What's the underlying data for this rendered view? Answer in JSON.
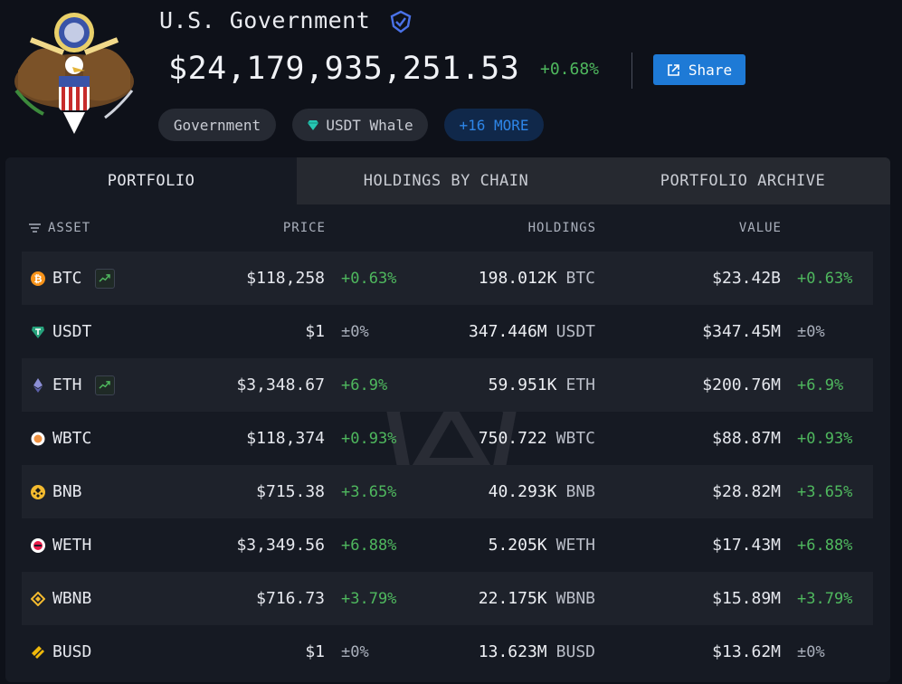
{
  "entity": {
    "name": "U.S. Government",
    "total_value": "$24,179,935,251.53",
    "total_change": "+0.68%",
    "share_label": "Share",
    "tags": [
      {
        "label": "Government"
      },
      {
        "label": "USDT Whale"
      },
      {
        "label": "+16 MORE"
      }
    ]
  },
  "tabs": [
    {
      "label": "PORTFOLIO",
      "active": true
    },
    {
      "label": "HOLDINGS BY CHAIN",
      "active": false
    },
    {
      "label": "PORTFOLIO ARCHIVE",
      "active": false
    }
  ],
  "table": {
    "headers": {
      "asset": "ASSET",
      "price": "PRICE",
      "holdings": "HOLDINGS",
      "value": "VALUE"
    },
    "rows": [
      {
        "asset": "BTC",
        "icon": "bitcoin-icon",
        "icon_color": "#f7931a",
        "trend": true,
        "price": "$118,258",
        "price_change": "+0.63%",
        "holdings": "198.012K",
        "symbol": "BTC",
        "value": "$23.42B",
        "value_change": "+0.63%"
      },
      {
        "asset": "USDT",
        "icon": "tether-icon",
        "icon_color": "#26a17b",
        "trend": false,
        "price": "$1",
        "price_change": "±0%",
        "holdings": "347.446M",
        "symbol": "USDT",
        "value": "$347.45M",
        "value_change": "±0%"
      },
      {
        "asset": "ETH",
        "icon": "ethereum-icon",
        "icon_color": "#8c8fd6",
        "trend": true,
        "price": "$3,348.67",
        "price_change": "+6.9%",
        "holdings": "59.951K",
        "symbol": "ETH",
        "value": "$200.76M",
        "value_change": "+6.9%"
      },
      {
        "asset": "WBTC",
        "icon": "wrapped-bitcoin-icon",
        "icon_color": "#f09242",
        "trend": false,
        "price": "$118,374",
        "price_change": "+0.93%",
        "holdings": "750.722",
        "symbol": "WBTC",
        "value": "$88.87M",
        "value_change": "+0.93%"
      },
      {
        "asset": "BNB",
        "icon": "bnb-icon",
        "icon_color": "#f3ba2f",
        "trend": false,
        "price": "$715.38",
        "price_change": "+3.65%",
        "holdings": "40.293K",
        "symbol": "BNB",
        "value": "$28.82M",
        "value_change": "+3.65%"
      },
      {
        "asset": "WETH",
        "icon": "wrapped-ether-icon",
        "icon_color": "#ec1c4a",
        "trend": false,
        "price": "$3,349.56",
        "price_change": "+6.88%",
        "holdings": "5.205K",
        "symbol": "WETH",
        "value": "$17.43M",
        "value_change": "+6.88%"
      },
      {
        "asset": "WBNB",
        "icon": "wbnb-icon",
        "icon_color": "#f3ba2f",
        "trend": false,
        "price": "$716.73",
        "price_change": "+3.79%",
        "holdings": "22.175K",
        "symbol": "WBNB",
        "value": "$15.89M",
        "value_change": "+3.79%"
      },
      {
        "asset": "BUSD",
        "icon": "busd-icon",
        "icon_color": "#f0b90b",
        "trend": false,
        "price": "$1",
        "price_change": "±0%",
        "holdings": "13.623M",
        "symbol": "BUSD",
        "value": "$13.62M",
        "value_change": "±0%"
      }
    ]
  },
  "colors": {
    "positive": "#4fb85e",
    "neutral": "#aab0bc",
    "accent": "#1e7ad6",
    "background": "#0e1119",
    "panel": "#161a23"
  }
}
